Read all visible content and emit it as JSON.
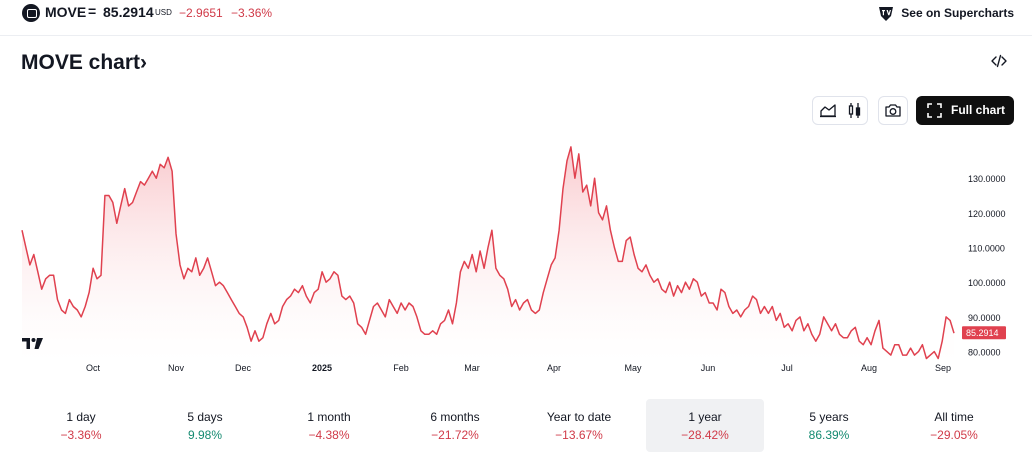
{
  "header": {
    "symbol": "MOVE",
    "separator": "=",
    "price": "85.2914",
    "currency": "USD",
    "change": "−2.9651",
    "change_pct": "−3.36%",
    "supercharts_link": "See on Supercharts",
    "symbol_icon": "index-icon",
    "supercharts_icon": "tradingview-badge-icon"
  },
  "chart_title": "MOVE chart›",
  "toolbar": {
    "embed_icon": "code-icon",
    "area_style_icon": "area-chart-icon",
    "candle_style_icon": "candles-icon",
    "snapshot_icon": "camera-icon",
    "full_chart_label": "Full chart",
    "full_chart_icon": "fullscreen-icon"
  },
  "chart_data": {
    "type": "area",
    "x_labels": [
      "Oct",
      "Nov",
      "Dec",
      "2025",
      "Feb",
      "Mar",
      "Apr",
      "May",
      "Jun",
      "Jul",
      "Aug",
      "Sep"
    ],
    "y_ticks": [
      "130.0000",
      "120.0000",
      "110.0000",
      "100.0000",
      "90.0000",
      "80.0000"
    ],
    "ylim": [
      77,
      141
    ],
    "last_value_label": "85.2914",
    "series": [
      {
        "values": [
          115,
          110,
          105,
          108,
          103,
          98,
          101,
          102,
          102,
          95,
          92,
          91,
          95,
          93,
          92,
          90,
          93,
          97,
          104,
          101,
          102,
          125,
          125,
          123,
          117,
          122,
          127,
          122,
          123,
          126,
          129,
          128,
          130,
          132,
          130,
          134,
          133,
          136,
          132,
          114,
          105,
          101,
          104,
          103,
          107,
          102,
          104,
          107,
          103,
          99,
          100,
          99,
          97,
          95,
          93,
          91,
          90,
          87,
          83,
          86,
          83,
          84,
          88,
          91,
          88,
          89,
          93,
          95,
          96,
          98,
          97,
          99,
          96,
          94,
          97,
          98,
          103,
          100,
          101,
          103,
          102,
          96,
          95,
          96,
          94,
          88,
          87,
          85,
          89,
          93,
          94,
          92,
          90,
          95,
          93,
          91,
          94,
          92,
          94,
          93,
          90,
          86,
          85,
          85,
          86,
          85,
          88,
          89,
          92,
          88,
          94,
          103,
          106,
          104,
          108,
          103,
          109,
          104,
          110,
          115,
          104,
          102,
          101,
          98,
          93,
          95,
          92,
          94,
          95,
          92,
          91,
          92,
          97,
          101,
          105,
          107,
          115,
          127,
          135,
          139,
          130,
          137,
          126,
          128,
          122,
          130,
          120,
          118,
          122,
          115,
          110,
          106,
          106,
          112,
          113,
          108,
          104,
          103,
          105,
          102,
          100,
          101,
          98,
          97,
          100,
          96,
          99,
          97,
          100,
          98,
          101,
          100,
          96,
          97,
          94,
          94,
          92,
          98,
          97,
          93,
          91,
          92,
          90,
          92,
          93,
          96,
          95,
          91,
          93,
          91,
          93,
          89,
          91,
          87,
          88,
          86,
          89,
          90,
          86,
          88,
          85,
          83,
          85,
          90,
          88,
          86,
          88,
          85,
          84,
          84,
          86,
          87,
          83,
          82,
          84,
          82,
          86,
          89,
          81,
          80,
          79,
          82,
          82,
          79,
          79,
          81,
          79,
          80,
          82,
          78,
          79,
          80,
          78,
          83,
          90,
          89,
          85.29
        ]
      }
    ],
    "grid": false,
    "color": "#e0414f",
    "fill_top": "#f9c7cb",
    "price_label_bg": "#e0414f"
  },
  "periods": [
    {
      "label": "1 day",
      "value": "−3.36%",
      "color": "#d03a48",
      "active": false
    },
    {
      "label": "5 days",
      "value": "9.98%",
      "color": "#138a70",
      "active": false
    },
    {
      "label": "1 month",
      "value": "−4.38%",
      "color": "#d03a48",
      "active": false
    },
    {
      "label": "6 months",
      "value": "−21.72%",
      "color": "#d03a48",
      "active": false
    },
    {
      "label": "Year to date",
      "value": "−13.67%",
      "color": "#d03a48",
      "active": false
    },
    {
      "label": "1 year",
      "value": "−28.42%",
      "color": "#d03a48",
      "active": true
    },
    {
      "label": "5 years",
      "value": "86.39%",
      "color": "#138a70",
      "active": false
    },
    {
      "label": "All time",
      "value": "−29.05%",
      "color": "#d03a48",
      "active": false
    }
  ]
}
